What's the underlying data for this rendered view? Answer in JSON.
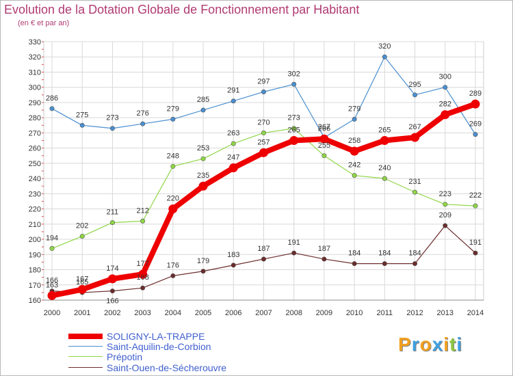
{
  "colors": {
    "soligny": "#ee0000",
    "corbion": "#4a8fd0",
    "prepotin": "#8fd645",
    "sechero": "#6b2c2c",
    "grid": "#d8d8d8",
    "title": "#b03a72"
  },
  "logo": {
    "text": "Proxiti",
    "letters": [
      "P",
      "r",
      "o",
      "x",
      "i",
      "t",
      "i"
    ],
    "letter_colors": [
      "#f0a020",
      "#3fa0e0",
      "#f0a020",
      "#3fa0e0",
      "#f0a020",
      "#8cc63f",
      "#3fa0e0"
    ]
  },
  "chart_data": {
    "type": "line",
    "title": "Evolution de la Dotation Globale de Fonctionnement par Habitant",
    "subtitle": "(en € et par an)",
    "xlabel": "",
    "ylabel": "",
    "categories": [
      "2000",
      "2001",
      "2002",
      "2003",
      "2004",
      "2005",
      "2006",
      "2007",
      "2008",
      "2009",
      "2010",
      "2011",
      "2012",
      "2013",
      "2014"
    ],
    "ylim": [
      160,
      330
    ],
    "yticks": [
      160,
      170,
      180,
      190,
      200,
      210,
      220,
      230,
      240,
      250,
      260,
      270,
      280,
      290,
      300,
      310,
      320,
      330
    ],
    "grid": true,
    "legend_position": "bottom-left",
    "series": [
      {
        "key": "soligny",
        "name": "SOLIGNY-LA-TRAPPE",
        "values": [
          163,
          167,
          174,
          177,
          220,
          235,
          247,
          257,
          265,
          266,
          258,
          265,
          267,
          282,
          289
        ],
        "label_dy": [
          -12,
          -12,
          -12,
          -12,
          -12,
          -12,
          -12,
          -12,
          -12,
          -12,
          -12,
          -12,
          -12,
          -12,
          -12
        ]
      },
      {
        "key": "corbion",
        "name": "Saint-Aquilin-de-Corbion",
        "values": [
          286,
          275,
          273,
          276,
          279,
          285,
          291,
          297,
          302,
          267,
          279,
          320,
          295,
          300,
          269
        ],
        "label_dy": [
          -12,
          -12,
          -12,
          -12,
          -12,
          -12,
          -12,
          -12,
          -12,
          -12,
          -12,
          -12,
          -12,
          -12,
          -12
        ]
      },
      {
        "key": "prepotin",
        "name": "Prépotin",
        "values": [
          194,
          202,
          211,
          212,
          248,
          253,
          263,
          270,
          273,
          255,
          242,
          240,
          231,
          223,
          222
        ],
        "label_dy": [
          -12,
          -12,
          -12,
          -12,
          -12,
          -12,
          -12,
          -12,
          -12,
          -12,
          -12,
          -12,
          -12,
          -12,
          -12
        ]
      },
      {
        "key": "sechero",
        "name": "Saint-Ouen-de-Sécherouvre",
        "values": [
          166,
          165,
          166,
          168,
          176,
          179,
          183,
          187,
          191,
          187,
          184,
          184,
          184,
          209,
          191
        ],
        "label_dy": [
          -12,
          -12,
          14,
          -12,
          -12,
          -12,
          -12,
          -12,
          -12,
          -12,
          -12,
          -12,
          -12,
          -12,
          -12
        ]
      }
    ]
  }
}
